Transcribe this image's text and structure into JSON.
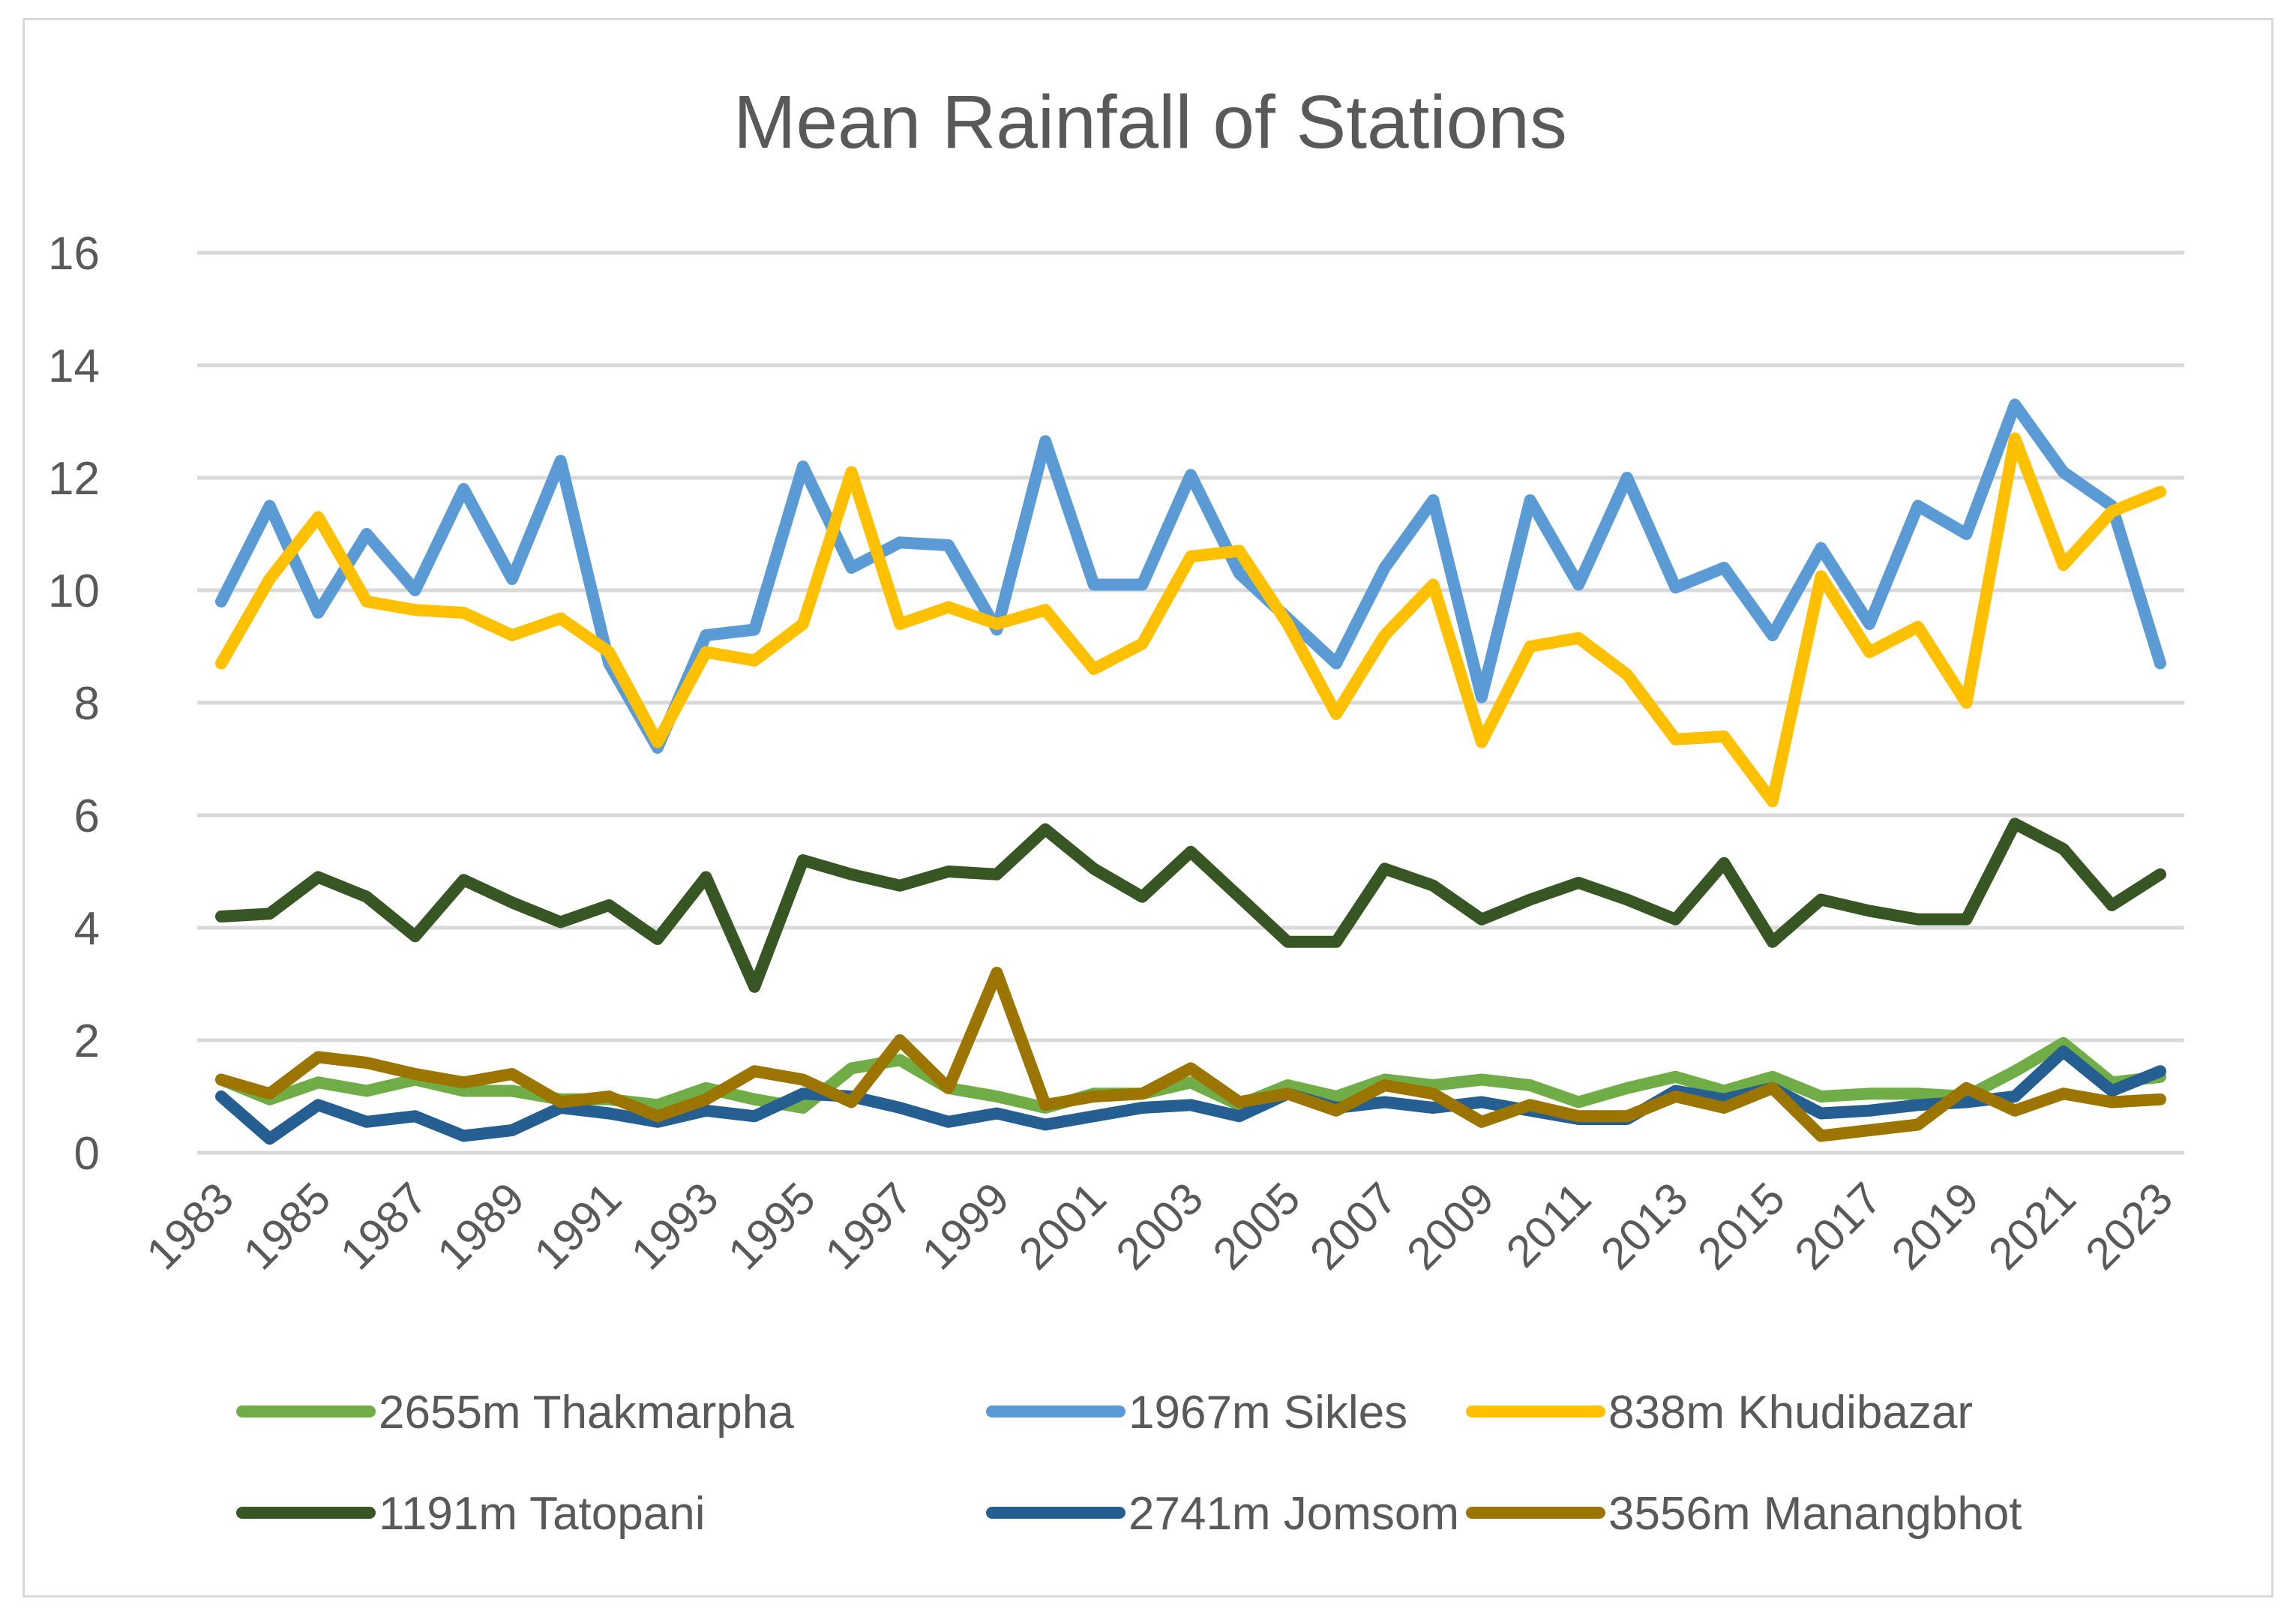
{
  "chart_data": {
    "type": "line",
    "title": "Mean Rainfall of Stations",
    "xlabel": "",
    "ylabel": "",
    "ylim": [
      0,
      16
    ],
    "yticks": [
      0,
      2,
      4,
      6,
      8,
      10,
      12,
      14,
      16
    ],
    "grid": true,
    "legend_position": "bottom",
    "x": [
      1983,
      1984,
      1985,
      1986,
      1987,
      1988,
      1989,
      1990,
      1991,
      1992,
      1993,
      1994,
      1995,
      1996,
      1997,
      1998,
      1999,
      2000,
      2001,
      2002,
      2003,
      2004,
      2005,
      2006,
      2007,
      2008,
      2009,
      2010,
      2011,
      2012,
      2013,
      2014,
      2015,
      2016,
      2017,
      2018,
      2019,
      2020,
      2021,
      2022,
      2023
    ],
    "xtick_labels": [
      "1983",
      "1985",
      "1987",
      "1989",
      "1991",
      "1993",
      "1995",
      "1997",
      "1999",
      "2001",
      "2003",
      "2005",
      "2007",
      "2009",
      "2011",
      "2013",
      "2015",
      "2017",
      "2019",
      "2021",
      "2023"
    ],
    "series": [
      {
        "name": "2655m Thakmarpha",
        "color": "#70ad47",
        "values": [
          1.3,
          0.95,
          1.25,
          1.1,
          1.3,
          1.1,
          1.1,
          0.95,
          0.95,
          0.85,
          1.15,
          0.95,
          0.8,
          1.5,
          1.65,
          1.15,
          1.0,
          0.8,
          1.05,
          1.05,
          1.25,
          0.85,
          1.2,
          1.0,
          1.3,
          1.2,
          1.3,
          1.2,
          0.9,
          1.15,
          1.35,
          1.1,
          1.35,
          1.0,
          1.05,
          1.05,
          1.0,
          1.45,
          1.95,
          1.25,
          1.35
        ]
      },
      {
        "name": "1967m Sikles",
        "color": "#5b9bd5",
        "values": [
          9.8,
          11.5,
          9.6,
          11.0,
          10.0,
          11.8,
          10.2,
          12.3,
          8.7,
          7.2,
          9.2,
          9.3,
          12.2,
          10.4,
          10.85,
          10.8,
          9.3,
          12.65,
          10.1,
          10.1,
          12.05,
          10.3,
          9.5,
          8.7,
          10.4,
          11.6,
          8.1,
          11.6,
          10.1,
          12.0,
          10.05,
          10.4,
          9.2,
          10.75,
          9.4,
          11.5,
          11.0,
          13.3,
          12.1,
          11.5,
          8.7
        ]
      },
      {
        "name": "838m Khudibazar",
        "color": "#ffc000",
        "values": [
          8.7,
          10.2,
          11.3,
          9.8,
          9.65,
          9.6,
          9.2,
          9.5,
          8.9,
          7.3,
          8.9,
          8.75,
          9.4,
          12.1,
          9.4,
          9.7,
          9.4,
          9.65,
          8.6,
          9.05,
          10.6,
          10.7,
          9.4,
          7.8,
          9.2,
          10.1,
          7.3,
          9.0,
          9.15,
          8.5,
          7.35,
          7.4,
          6.25,
          10.25,
          8.9,
          9.35,
          8.0,
          12.7,
          10.45,
          11.4,
          11.75
        ]
      },
      {
        "name": "1191m Tatopani",
        "color": "#375623",
        "values": [
          4.2,
          4.25,
          4.9,
          4.55,
          3.85,
          4.85,
          4.45,
          4.1,
          4.4,
          3.8,
          4.9,
          2.95,
          5.2,
          4.95,
          4.75,
          5.0,
          4.95,
          5.75,
          5.05,
          4.55,
          5.35,
          4.55,
          3.75,
          3.75,
          5.05,
          4.75,
          4.15,
          4.5,
          4.8,
          4.5,
          4.15,
          5.15,
          3.75,
          4.5,
          4.3,
          4.15,
          4.15,
          5.85,
          5.4,
          4.4,
          4.95
        ]
      },
      {
        "name": "2741m Jomsom",
        "color": "#255e91",
        "values": [
          1.0,
          0.25,
          0.85,
          0.55,
          0.65,
          0.3,
          0.4,
          0.8,
          0.7,
          0.55,
          0.75,
          0.65,
          1.05,
          1.0,
          0.8,
          0.55,
          0.7,
          0.5,
          0.65,
          0.8,
          0.85,
          0.65,
          1.05,
          0.8,
          0.9,
          0.8,
          0.9,
          0.75,
          0.6,
          0.6,
          1.1,
          0.95,
          1.15,
          0.7,
          0.75,
          0.85,
          0.9,
          1.0,
          1.8,
          1.1,
          1.45
        ]
      },
      {
        "name": "3556m Manangbhot",
        "color": "#9c7400",
        "values": [
          1.3,
          1.05,
          1.7,
          1.6,
          1.4,
          1.25,
          1.4,
          0.9,
          1.0,
          0.65,
          0.95,
          1.45,
          1.3,
          0.9,
          2.0,
          1.15,
          3.2,
          0.85,
          1.0,
          1.05,
          1.5,
          0.9,
          1.05,
          0.75,
          1.2,
          1.05,
          0.55,
          0.85,
          0.65,
          0.65,
          1.0,
          0.8,
          1.15,
          0.3,
          0.4,
          0.5,
          1.15,
          0.75,
          1.05,
          0.9,
          0.95
        ]
      }
    ]
  }
}
